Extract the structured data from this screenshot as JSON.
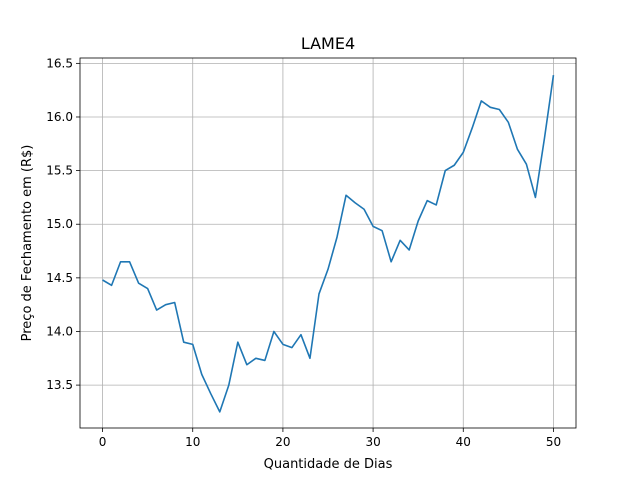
{
  "chart_data": {
    "type": "line",
    "title": "LAME4",
    "xlabel": "Quantidade de Dias",
    "ylabel": "Preço de Fechamento em (R$)",
    "xlim": [
      -2.5,
      52.5
    ],
    "ylim": [
      13.1,
      16.55
    ],
    "xticks": [
      0,
      10,
      20,
      30,
      40,
      50
    ],
    "yticks": [
      13.5,
      14.0,
      14.5,
      15.0,
      15.5,
      16.0,
      16.5
    ],
    "xtick_labels": [
      "0",
      "10",
      "20",
      "30",
      "40",
      "50"
    ],
    "ytick_labels": [
      "13.5",
      "14.0",
      "14.5",
      "15.0",
      "15.5",
      "16.0",
      "16.5"
    ],
    "grid": true,
    "series_color": "#1f77b4",
    "x": [
      0,
      1,
      2,
      3,
      4,
      5,
      6,
      7,
      8,
      9,
      10,
      11,
      12,
      13,
      14,
      15,
      16,
      17,
      18,
      19,
      20,
      21,
      22,
      23,
      24,
      25,
      26,
      27,
      28,
      29,
      30,
      31,
      32,
      33,
      34,
      35,
      36,
      37,
      38,
      39,
      40,
      41,
      42,
      43,
      44,
      45,
      46,
      47,
      48,
      49,
      50
    ],
    "values": [
      14.48,
      14.43,
      14.65,
      14.65,
      14.45,
      14.4,
      14.2,
      14.25,
      14.27,
      13.9,
      13.88,
      13.6,
      13.42,
      13.25,
      13.5,
      13.9,
      13.69,
      13.75,
      13.73,
      14.0,
      13.88,
      13.85,
      13.97,
      13.75,
      14.35,
      14.58,
      14.88,
      15.27,
      15.2,
      15.14,
      14.98,
      14.94,
      14.65,
      14.85,
      14.76,
      15.03,
      15.22,
      15.18,
      15.5,
      15.55,
      15.67,
      15.9,
      16.15,
      16.09,
      16.07,
      15.95,
      15.7,
      15.56,
      15.25,
      15.8,
      16.39
    ]
  }
}
